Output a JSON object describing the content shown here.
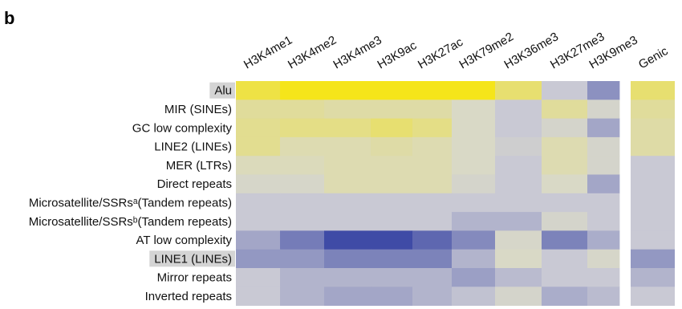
{
  "panel_label": "b",
  "colors": {
    "high": "#f5e51a",
    "mid": "#d9d9c6",
    "neutral": "#c9c9d4",
    "low": "#3f4ba6",
    "row_highlight": "#d4d4d4"
  },
  "chart_data": {
    "type": "heatmap",
    "scale": "fill color from low (blue) through grey to high (yellow); no value labels or colorbar shown",
    "columns": [
      "H3K4me1",
      "H3K4me2",
      "H3K4me3",
      "H3K9ac",
      "H3K27ac",
      "H3K79me2",
      "H3K36me3",
      "H3K27me3",
      "H3K9me3"
    ],
    "separate_column": "Genic",
    "rows": [
      "Alu",
      "MIR (SINEs)",
      "GC low complexity",
      "LINE2 (LINEs)",
      "MER (LTRs)",
      "Direct repeats",
      "Microsatellite/SSRsᵃ(Tandem repeats)",
      "Microsatellite/SSRsᵇ(Tandem repeats)",
      "AT low complexity",
      "LINE1 (LINEs)",
      "Mirror repeats",
      "Inverted repeats"
    ],
    "highlighted_rows": [
      "Alu",
      "LINE1 (LINEs)"
    ],
    "values": [
      [
        0.75,
        0.95,
        0.95,
        0.95,
        0.95,
        0.95,
        0.55,
        0.0,
        -0.4
      ],
      [
        0.35,
        0.35,
        0.3,
        0.3,
        0.3,
        0.15,
        0.0,
        0.35,
        0.1
      ],
      [
        0.4,
        0.45,
        0.45,
        0.55,
        0.45,
        0.15,
        0.0,
        0.1,
        -0.25
      ],
      [
        0.4,
        0.25,
        0.25,
        0.3,
        0.25,
        0.15,
        0.05,
        0.25,
        0.1
      ],
      [
        0.2,
        0.2,
        0.25,
        0.25,
        0.25,
        0.15,
        0.0,
        0.25,
        0.1
      ],
      [
        0.12,
        0.12,
        0.25,
        0.25,
        0.25,
        0.1,
        0.0,
        0.15,
        -0.25
      ],
      [
        0.0,
        0.0,
        0.0,
        0.0,
        0.0,
        0.0,
        0.0,
        0.0,
        0.0
      ],
      [
        0.0,
        0.0,
        0.0,
        0.0,
        0.0,
        -0.15,
        -0.15,
        0.1,
        0.0
      ],
      [
        -0.25,
        -0.55,
        -0.9,
        -0.9,
        -0.7,
        -0.45,
        0.12,
        -0.5,
        -0.2
      ],
      [
        -0.35,
        -0.35,
        -0.5,
        -0.5,
        -0.5,
        -0.15,
        0.15,
        0.0,
        0.12
      ],
      [
        0.0,
        -0.15,
        -0.15,
        -0.15,
        -0.15,
        -0.3,
        -0.1,
        0.0,
        0.0
      ],
      [
        0.0,
        -0.15,
        -0.25,
        -0.25,
        -0.15,
        -0.05,
        0.1,
        -0.2,
        -0.1
      ]
    ],
    "genic_values": [
      0.55,
      0.35,
      0.3,
      0.3,
      0.0,
      0.0,
      0.0,
      0.0,
      0.0,
      -0.35,
      -0.15,
      0.0
    ]
  }
}
